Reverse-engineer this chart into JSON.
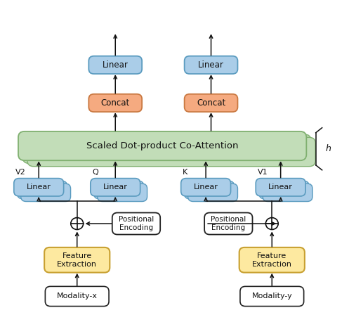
{
  "fig_width": 4.97,
  "fig_height": 4.48,
  "dpi": 100,
  "bg_color": "#ffffff",
  "colors": {
    "blue_box": "#aacde8",
    "blue_box_border": "#5a9bbf",
    "orange_box": "#f5aa80",
    "orange_box_border": "#c97840",
    "green_box": "#c2ddb8",
    "green_box_border": "#80b070",
    "yellow_box": "#fde9a0",
    "yellow_box_border": "#c8a030",
    "white_box": "#ffffff",
    "white_box_border": "#222222",
    "arrow_color": "#111111",
    "text_color": "#111111"
  },
  "xlim": [
    0,
    10
  ],
  "ylim": [
    0,
    9.5
  ]
}
